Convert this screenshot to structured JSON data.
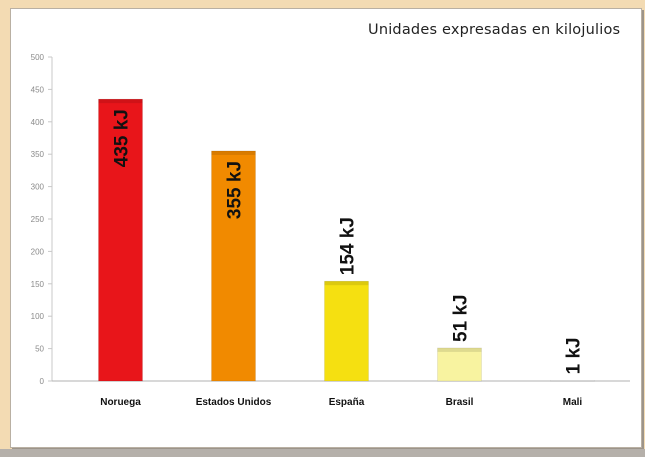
{
  "chart_data": {
    "type": "bar",
    "title": "Unidades expresadas en kilojulios",
    "categories": [
      "Noruega",
      "Estados Unidos",
      "España",
      "Brasil",
      "Mali"
    ],
    "values": [
      435,
      355,
      154,
      51,
      1
    ],
    "data_labels": [
      "435 kJ",
      "355 kJ",
      "154 kJ",
      "51 kJ",
      "1 kJ"
    ],
    "colors": [
      "#e8151a",
      "#f18a00",
      "#f5e011",
      "#f8f3a0",
      "#ffffff"
    ],
    "ylim": [
      0,
      500
    ],
    "yticks": [
      0,
      50,
      100,
      150,
      200,
      250,
      300,
      350,
      400,
      450,
      500
    ],
    "grid": false,
    "xlabel": "",
    "ylabel": ""
  }
}
